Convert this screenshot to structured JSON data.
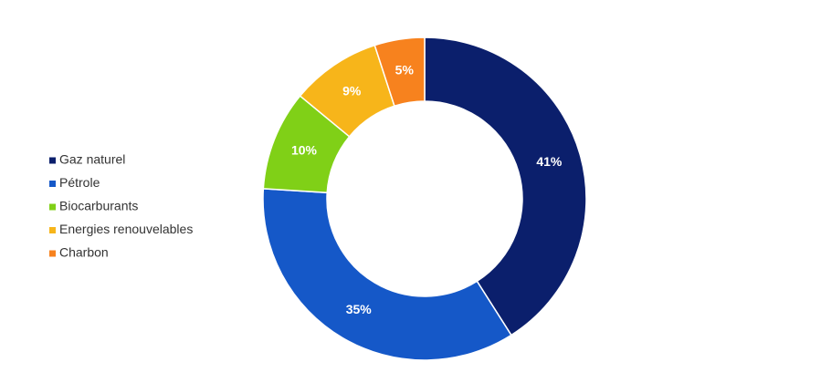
{
  "chart_data": {
    "type": "donut",
    "categories": [
      "Gaz naturel",
      "Pétrole",
      "Biocarburants",
      "Energies renouvelables",
      "Charbon"
    ],
    "values": [
      41,
      35,
      10,
      9,
      5
    ],
    "value_labels": [
      "41%",
      "35%",
      "10%",
      "9%",
      "5%"
    ],
    "colors": [
      "#0b1f6c",
      "#1558c8",
      "#80d017",
      "#f7b51a",
      "#f7821e"
    ],
    "legend": "left"
  }
}
